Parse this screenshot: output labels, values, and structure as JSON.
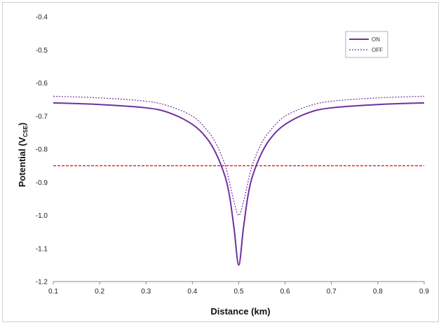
{
  "chart_data": {
    "type": "line",
    "title": "",
    "xlabel": "Distance (km)",
    "ylabel_main": "Potential (V",
    "ylabel_sub": "CSE",
    "ylabel_tail": ")",
    "xlim": [
      0.1,
      0.9
    ],
    "ylim": [
      -1.2,
      -0.4
    ],
    "x_ticks": [
      "0.1",
      "0.2",
      "0.3",
      "0.4",
      "0.5",
      "0.6",
      "0.7",
      "0.8",
      "0.9"
    ],
    "y_ticks": [
      "-0.4",
      "-0.5",
      "-0.6",
      "-0.7",
      "-0.8",
      "-0.9",
      "-1.0",
      "-1.1",
      "-1.2"
    ],
    "grid": false,
    "legend_position": "top-right",
    "series": [
      {
        "name": "ON",
        "color": "#7030a0",
        "style": "solid",
        "x": [
          0.1,
          0.2,
          0.3,
          0.35,
          0.4,
          0.43,
          0.45,
          0.47,
          0.48,
          0.49,
          0.5,
          0.51,
          0.52,
          0.53,
          0.55,
          0.57,
          0.6,
          0.65,
          0.7,
          0.8,
          0.9
        ],
        "y": [
          -0.66,
          -0.665,
          -0.675,
          -0.69,
          -0.725,
          -0.765,
          -0.81,
          -0.88,
          -0.94,
          -1.04,
          -1.15,
          -1.04,
          -0.94,
          -0.88,
          -0.81,
          -0.765,
          -0.725,
          -0.69,
          -0.675,
          -0.665,
          -0.66
        ]
      },
      {
        "name": "OFF",
        "color": "#7030a0",
        "style": "dotted",
        "x": [
          0.1,
          0.2,
          0.3,
          0.35,
          0.4,
          0.43,
          0.45,
          0.47,
          0.48,
          0.49,
          0.5,
          0.51,
          0.52,
          0.53,
          0.55,
          0.57,
          0.6,
          0.65,
          0.7,
          0.8,
          0.9
        ],
        "y": [
          -0.64,
          -0.645,
          -0.655,
          -0.67,
          -0.7,
          -0.74,
          -0.78,
          -0.845,
          -0.9,
          -0.96,
          -1.0,
          -0.96,
          -0.9,
          -0.845,
          -0.78,
          -0.74,
          -0.7,
          -0.67,
          -0.655,
          -0.645,
          -0.64
        ]
      }
    ],
    "reference_line": {
      "y": -0.85,
      "color": "#ff0000",
      "style": "dashed"
    }
  }
}
